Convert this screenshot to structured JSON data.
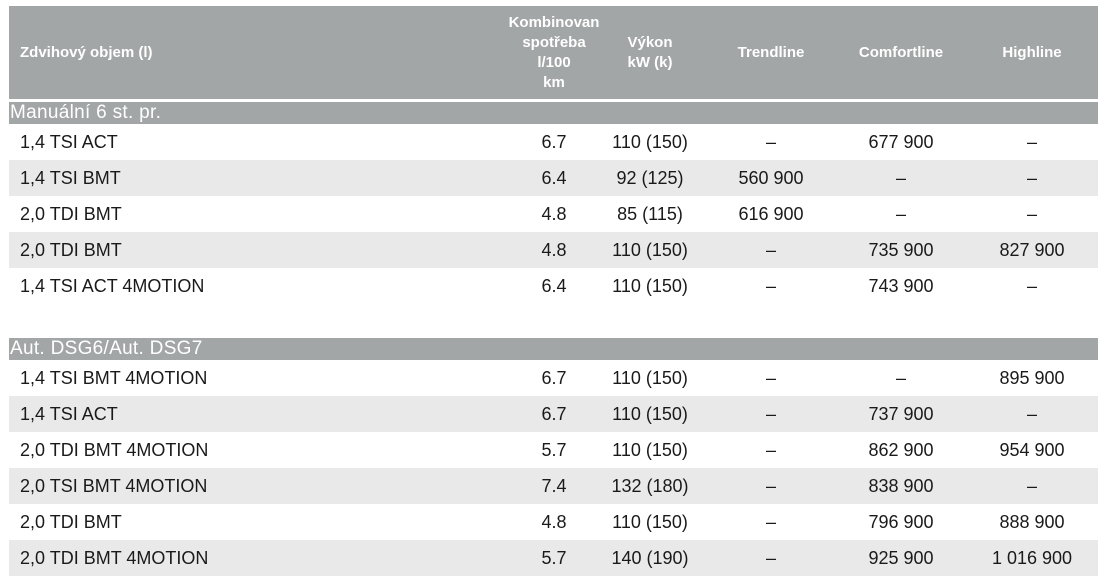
{
  "columns": {
    "name": "Zdvihový objem (l)",
    "consumption_lines": [
      "Kombinovan",
      "spotřeba",
      "l/100",
      "km"
    ],
    "power_lines": [
      "Výkon",
      "kW (k)"
    ],
    "trendline": "Trendline",
    "comfortline": "Comfortline",
    "highline": "Highline"
  },
  "sections": [
    {
      "title": "Manuální 6 st. pr.",
      "rows": [
        {
          "name": "1,4 TSI ACT",
          "consumption": "6.7",
          "power": "110 (150)",
          "trendline": "–",
          "comfortline": "677 900",
          "highline": "–"
        },
        {
          "name": "1,4 TSI BMT",
          "consumption": "6.4",
          "power": "92 (125)",
          "trendline": "560 900",
          "comfortline": "–",
          "highline": "–"
        },
        {
          "name": "2,0 TDI BMT",
          "consumption": "4.8",
          "power": "85 (115)",
          "trendline": "616 900",
          "comfortline": "–",
          "highline": "–"
        },
        {
          "name": "2,0 TDI BMT",
          "consumption": "4.8",
          "power": "110 (150)",
          "trendline": "–",
          "comfortline": "735 900",
          "highline": "827 900"
        },
        {
          "name": "1,4 TSI ACT 4MOTION",
          "consumption": "6.4",
          "power": "110 (150)",
          "trendline": "–",
          "comfortline": "743 900",
          "highline": "–"
        }
      ]
    },
    {
      "title": "Aut. DSG6/Aut. DSG7",
      "rows": [
        {
          "name": "1,4 TSI BMT 4MOTION",
          "consumption": "6.7",
          "power": "110 (150)",
          "trendline": "–",
          "comfortline": "–",
          "highline": "895 900"
        },
        {
          "name": "1,4 TSI ACT",
          "consumption": "6.7",
          "power": "110 (150)",
          "trendline": "–",
          "comfortline": "737 900",
          "highline": "–"
        },
        {
          "name": "2,0 TDI BMT 4MOTION",
          "consumption": "5.7",
          "power": "110 (150)",
          "trendline": "–",
          "comfortline": "862 900",
          "highline": "954 900"
        },
        {
          "name": "2,0 TSI BMT 4MOTION",
          "consumption": "7.4",
          "power": "132 (180)",
          "trendline": "–",
          "comfortline": "838 900",
          "highline": "–"
        },
        {
          "name": "2,0 TDI BMT",
          "consumption": "4.8",
          "power": "110 (150)",
          "trendline": "–",
          "comfortline": "796 900",
          "highline": "888 900"
        },
        {
          "name": "2,0 TDI BMT 4MOTION",
          "consumption": "5.7",
          "power": "140 (190)",
          "trendline": "–",
          "comfortline": "925 900",
          "highline": "1 016 900"
        }
      ]
    }
  ],
  "colors": {
    "header_bg": "#a3a6a6",
    "row_alt_bg": "#e9e9ea",
    "text": "#1a1a1a"
  }
}
